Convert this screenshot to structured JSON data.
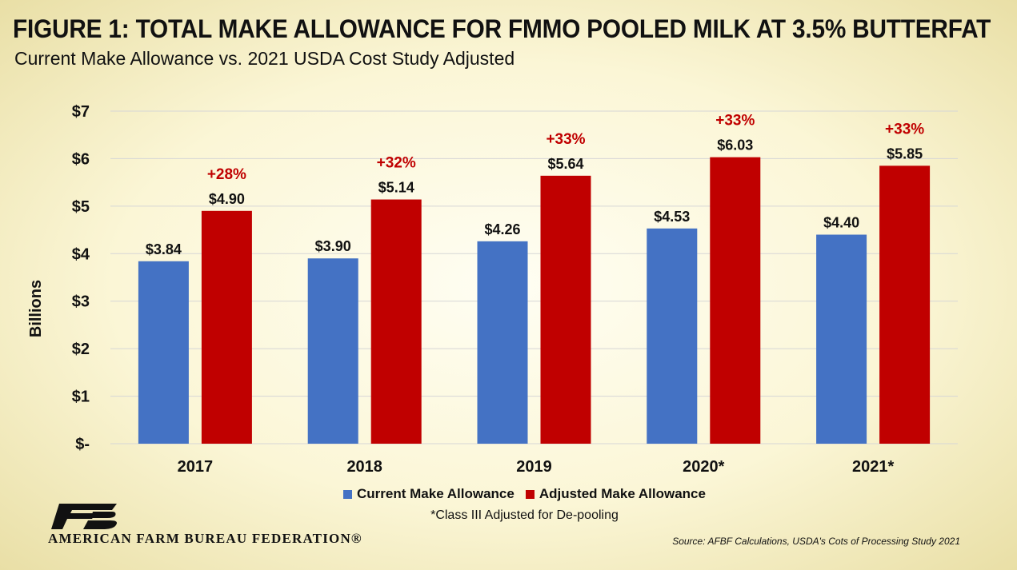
{
  "title": "FIGURE 1: TOTAL MAKE ALLOWANCE FOR FMMO POOLED MILK AT 3.5% BUTTERFAT",
  "subtitle": "Current Make Allowance vs. 2021 USDA Cost Study Adjusted",
  "chart_data": {
    "type": "bar",
    "categories": [
      "2017",
      "2018",
      "2019",
      "2020*",
      "2021*"
    ],
    "series": [
      {
        "name": "Current Make Allowance",
        "values": [
          3.84,
          3.9,
          4.26,
          4.53,
          4.4
        ],
        "labels": [
          "$3.84",
          "$3.90",
          "$4.26",
          "$4.53",
          "$4.40"
        ],
        "color": "#4472c4"
      },
      {
        "name": "Adjusted Make Allowance",
        "values": [
          4.9,
          5.14,
          5.64,
          6.03,
          5.85
        ],
        "labels": [
          "$4.90",
          "$5.14",
          "$5.64",
          "$6.03",
          "$5.85"
        ],
        "color": "#c00000"
      }
    ],
    "pct_labels": [
      "+28%",
      "+32%",
      "+33%",
      "+33%",
      "+33%"
    ],
    "pct_color": "#c00000",
    "ylabel": "Billions",
    "ylim": [
      0,
      7
    ],
    "yticks": [
      0,
      1,
      2,
      3,
      4,
      5,
      6,
      7
    ],
    "ytick_labels": [
      "$-",
      "$1",
      "$2",
      "$3",
      "$4",
      "$5",
      "$6",
      "$7"
    ],
    "grid": true,
    "legend_position": "bottom"
  },
  "note": "*Class III Adjusted for De-pooling",
  "organization": "AMERICAN FARM BUREAU FEDERATION®",
  "source": "Source: AFBF Calculations, USDA's Cots of Processing Study 2021"
}
